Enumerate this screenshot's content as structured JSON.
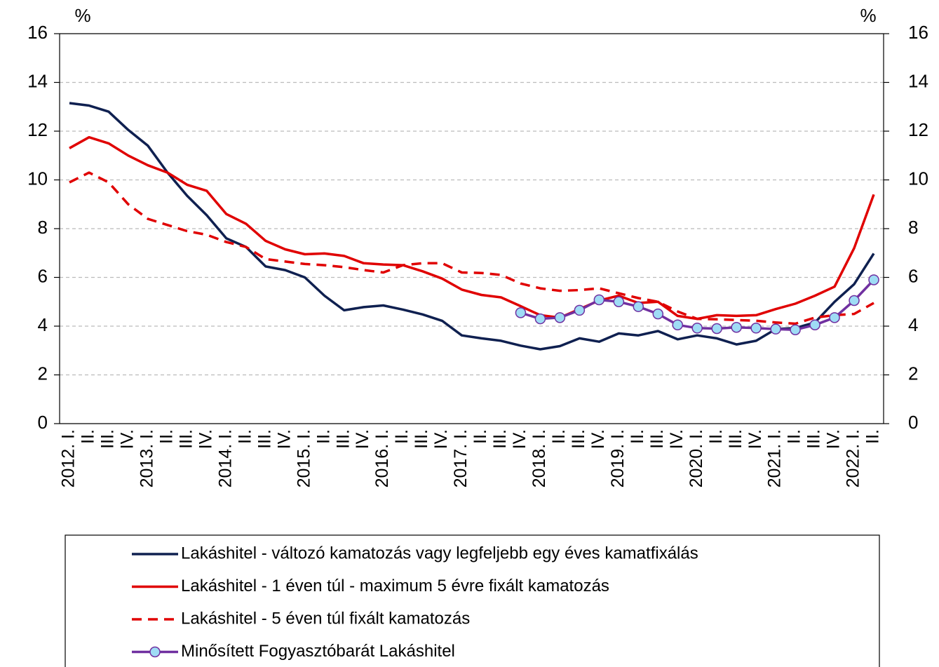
{
  "chart_data": {
    "type": "line",
    "ylabel": "%",
    "y2label": "%",
    "categories": [
      "2012. I.",
      "II.",
      "III.",
      "IV.",
      "2013. I.",
      "II.",
      "III.",
      "IV.",
      "2014. I.",
      "II.",
      "III.",
      "IV.",
      "2015. I.",
      "II.",
      "III.",
      "IV.",
      "2016. I.",
      "II.",
      "III.",
      "IV.",
      "2017. I.",
      "II.",
      "III.",
      "IV.",
      "2018. I.",
      "II.",
      "III.",
      "IV.",
      "2019. I.",
      "II.",
      "III.",
      "IV.",
      "2020. I.",
      "II.",
      "III.",
      "IV.",
      "2021. I.",
      "II.",
      "III.",
      "IV.",
      "2022. I.",
      "II."
    ],
    "series": [
      {
        "name": "Lakáshitel - változó kamatozás vagy legfeljebb egy éves kamatfixálás",
        "color": "#0f2050",
        "values": [
          13.15,
          13.05,
          12.8,
          12.05,
          11.4,
          10.3,
          9.35,
          8.55,
          7.6,
          7.25,
          6.45,
          6.3,
          6.0,
          5.25,
          4.65,
          4.78,
          4.85,
          4.68,
          4.48,
          4.22,
          3.62,
          3.5,
          3.4,
          3.2,
          3.05,
          3.18,
          3.5,
          3.36,
          3.7,
          3.62,
          3.8,
          3.46,
          3.62,
          3.5,
          3.25,
          3.4,
          3.88,
          3.92,
          4.15,
          5.0,
          5.72,
          6.98
        ]
      },
      {
        "name": "Lakáshitel - 1 éven túl - maximum 5 évre fixált kamatozás",
        "color": "#e00000",
        "values": [
          11.3,
          11.75,
          11.5,
          11.0,
          10.6,
          10.3,
          9.8,
          9.55,
          8.6,
          8.2,
          7.5,
          7.15,
          6.95,
          6.98,
          6.88,
          6.58,
          6.53,
          6.5,
          6.25,
          5.95,
          5.5,
          5.28,
          5.18,
          4.82,
          4.45,
          4.35,
          4.7,
          5.05,
          5.25,
          4.95,
          5.0,
          4.42,
          4.3,
          4.45,
          4.42,
          4.45,
          4.7,
          4.92,
          5.25,
          5.62,
          7.2,
          9.4
        ]
      },
      {
        "name": "Lakáshitel - 5 éven túl fixált kamatozás",
        "color": "#e00000",
        "dash": true,
        "values": [
          9.9,
          10.3,
          9.9,
          9.0,
          8.4,
          8.15,
          7.9,
          7.75,
          7.45,
          7.25,
          6.75,
          6.65,
          6.55,
          6.5,
          6.42,
          6.3,
          6.2,
          6.5,
          6.58,
          6.58,
          6.2,
          6.18,
          6.1,
          5.75,
          5.55,
          5.45,
          5.48,
          5.55,
          5.35,
          5.15,
          5.0,
          4.6,
          4.3,
          4.28,
          4.25,
          4.22,
          4.15,
          4.1,
          4.35,
          4.45,
          4.5,
          4.95
        ]
      },
      {
        "name": "Minősített Fogyasztóbarát Lakáshitel",
        "color": "#7030a0",
        "marker": "circle",
        "marker_color": "#9fdcf5",
        "values": [
          null,
          null,
          null,
          null,
          null,
          null,
          null,
          null,
          null,
          null,
          null,
          null,
          null,
          null,
          null,
          null,
          null,
          null,
          null,
          null,
          null,
          null,
          null,
          4.55,
          4.3,
          4.35,
          4.65,
          5.08,
          5.0,
          4.8,
          4.5,
          4.05,
          3.92,
          3.9,
          3.95,
          3.92,
          3.88,
          3.85,
          4.05,
          4.35,
          5.05,
          5.9
        ]
      }
    ],
    "ylim": [
      0,
      16
    ],
    "yticks": [
      0,
      2,
      4,
      6,
      8,
      10,
      12,
      14,
      16
    ],
    "y2lim": [
      0,
      16
    ],
    "y2ticks": [
      0,
      2,
      4,
      6,
      8,
      10,
      12,
      14,
      16
    ],
    "grid": true
  }
}
